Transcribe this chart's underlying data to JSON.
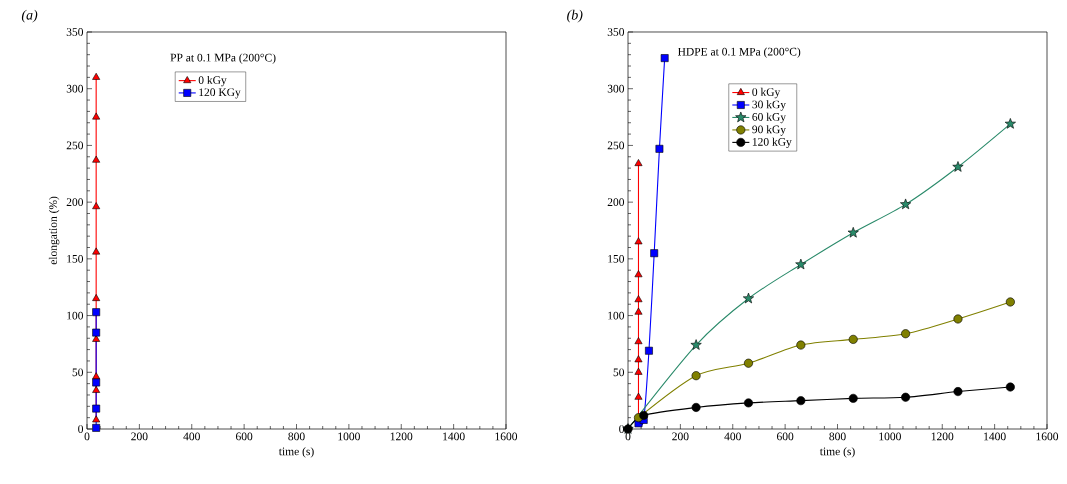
{
  "chart_data": [
    {
      "type": "line",
      "title": "(a)",
      "annotations": [
        "PP at 0.1 MPa (200°C)"
      ],
      "xlabel": "time (s)",
      "ylabel": "elongation (%)",
      "xlim": [
        0,
        1600
      ],
      "xticks": [
        0,
        200,
        400,
        600,
        800,
        1000,
        1200,
        1400,
        1600
      ],
      "ylim": [
        0,
        350
      ],
      "yticks": [
        0,
        50,
        100,
        150,
        200,
        250,
        300,
        350
      ],
      "legend": "top",
      "grid": false,
      "series": [
        {
          "name": "0  kGy",
          "color": "#ff0000",
          "marker": "triangle",
          "x": [
            35,
            35,
            35,
            35,
            35,
            35,
            35,
            35,
            35,
            35
          ],
          "values": [
            8,
            34,
            46,
            79,
            115,
            156,
            196,
            237,
            275,
            310
          ]
        },
        {
          "name": "120 KGy",
          "color": "#0000ff",
          "marker": "square",
          "x": [
            35,
            35,
            35,
            35,
            35
          ],
          "values": [
            1,
            18,
            41,
            85,
            103
          ]
        }
      ]
    },
    {
      "type": "line",
      "title": "(b)",
      "annotations": [
        "HDPE at 0.1 MPa (200°C)"
      ],
      "xlabel": "time (s)",
      "xlim": [
        0,
        1600
      ],
      "xticks": [
        0,
        200,
        400,
        600,
        800,
        1000,
        1200,
        1400,
        1600
      ],
      "ylim": [
        0,
        350
      ],
      "yticks": [
        0,
        50,
        100,
        150,
        200,
        250,
        300,
        350
      ],
      "legend": "top left",
      "grid": false,
      "series": [
        {
          "name": "0 kGy",
          "color": "#ff0000",
          "marker": "triangle",
          "x": [
            40,
            40,
            40,
            40,
            40,
            40,
            40,
            40,
            40,
            40
          ],
          "values": [
            8,
            28,
            50,
            61,
            77,
            103,
            114,
            136,
            165,
            234
          ]
        },
        {
          "name": "30 kGy",
          "color": "#0000ff",
          "marker": "square",
          "x": [
            40,
            60,
            80,
            100,
            120,
            140
          ],
          "values": [
            5,
            8,
            69,
            155,
            247,
            327
          ]
        },
        {
          "name": "60 kGy",
          "color": "#2a8a6a",
          "marker": "star",
          "x": [
            0,
            60,
            260,
            460,
            660,
            860,
            1060,
            1260,
            1460
          ],
          "values": [
            0,
            null,
            74,
            115,
            145,
            173,
            198,
            231,
            269
          ]
        },
        {
          "name": "90 kGy",
          "color": "#808000",
          "marker": "circle",
          "x": [
            40,
            60,
            260,
            460,
            660,
            860,
            1060,
            1260,
            1460
          ],
          "values": [
            10,
            null,
            47,
            58,
            74,
            79,
            84,
            97,
            112
          ]
        },
        {
          "name": "120 kGy",
          "color": "#000000",
          "marker": "circle",
          "x": [
            0,
            60,
            260,
            460,
            660,
            860,
            1060,
            1260,
            1460
          ],
          "values": [
            0,
            12,
            19,
            23,
            25,
            27,
            28,
            33,
            37
          ]
        }
      ]
    }
  ]
}
